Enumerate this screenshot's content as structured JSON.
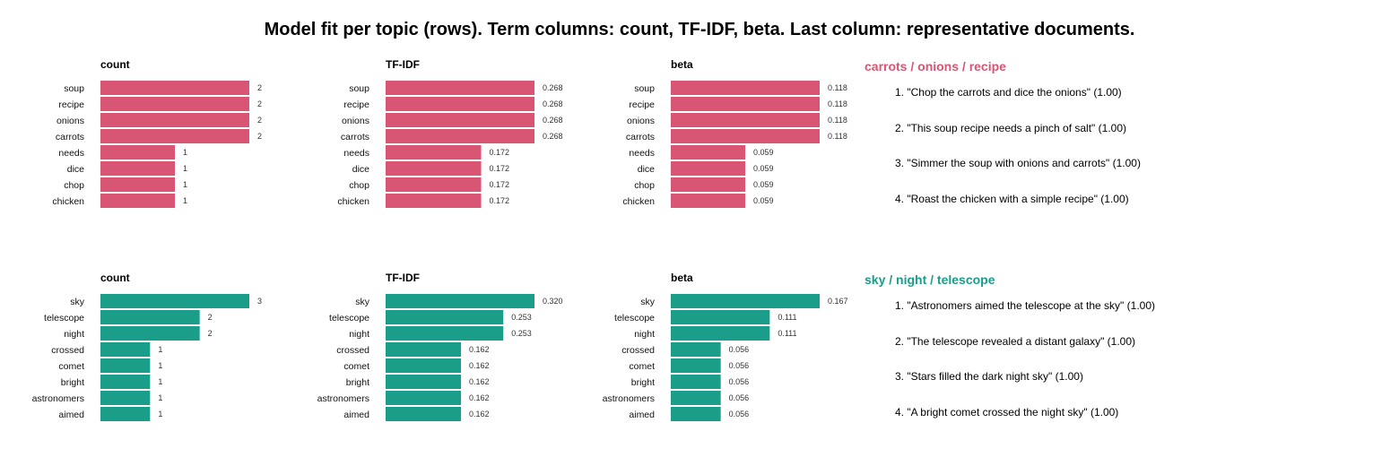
{
  "title": "Model fit per topic (rows). Term columns: count, TF-IDF, beta. Last column: representative documents.",
  "chart_data": [
    {
      "type": "bar",
      "orientation": "horizontal",
      "color": "#d95574",
      "topic_label": "carrots / onions / recipe",
      "terms": [
        "soup",
        "recipe",
        "onions",
        "carrots",
        "needs",
        "dice",
        "chop",
        "chicken"
      ],
      "panels": [
        {
          "metric": "count",
          "values": [
            2,
            2,
            2,
            2,
            1,
            1,
            1,
            1
          ],
          "labels": [
            "2",
            "2",
            "2",
            "2",
            "1",
            "1",
            "1",
            "1"
          ],
          "xlim": [
            0,
            2
          ]
        },
        {
          "metric": "TF-IDF",
          "values": [
            0.268,
            0.268,
            0.268,
            0.268,
            0.172,
            0.172,
            0.172,
            0.172
          ],
          "labels": [
            "0.268",
            "0.268",
            "0.268",
            "0.268",
            "0.172",
            "0.172",
            "0.172",
            "0.172"
          ],
          "xlim": [
            0,
            0.268
          ]
        },
        {
          "metric": "beta",
          "values": [
            0.118,
            0.118,
            0.118,
            0.118,
            0.059,
            0.059,
            0.059,
            0.059
          ],
          "labels": [
            "0.118",
            "0.118",
            "0.118",
            "0.118",
            "0.059",
            "0.059",
            "0.059",
            "0.059"
          ],
          "xlim": [
            0,
            0.118
          ]
        }
      ],
      "documents": [
        "1. \"Chop the carrots and dice the onions\"  (1.00)",
        "2. \"This soup recipe needs a pinch of salt\"  (1.00)",
        "3. \"Simmer the soup with onions and carrots\"  (1.00)",
        "4. \"Roast the chicken with a simple recipe\"  (1.00)"
      ]
    },
    {
      "type": "bar",
      "orientation": "horizontal",
      "color": "#1a9e8a",
      "topic_label": "sky / night / telescope",
      "terms": [
        "sky",
        "telescope",
        "night",
        "crossed",
        "comet",
        "bright",
        "astronomers",
        "aimed"
      ],
      "panels": [
        {
          "metric": "count",
          "values": [
            3,
            2,
            2,
            1,
            1,
            1,
            1,
            1
          ],
          "labels": [
            "3",
            "2",
            "2",
            "1",
            "1",
            "1",
            "1",
            "1"
          ],
          "xlim": [
            0,
            3
          ]
        },
        {
          "metric": "TF-IDF",
          "values": [
            0.32,
            0.253,
            0.253,
            0.162,
            0.162,
            0.162,
            0.162,
            0.162
          ],
          "labels": [
            "0.320",
            "0.253",
            "0.253",
            "0.162",
            "0.162",
            "0.162",
            "0.162",
            "0.162"
          ],
          "xlim": [
            0,
            0.32
          ]
        },
        {
          "metric": "beta",
          "values": [
            0.167,
            0.111,
            0.111,
            0.056,
            0.056,
            0.056,
            0.056,
            0.056
          ],
          "labels": [
            "0.167",
            "0.111",
            "0.111",
            "0.056",
            "0.056",
            "0.056",
            "0.056",
            "0.056"
          ],
          "xlim": [
            0,
            0.167
          ]
        }
      ],
      "documents": [
        "1. \"Astronomers aimed the telescope at the sky\"  (1.00)",
        "2. \"The telescope revealed a distant galaxy\"  (1.00)",
        "3. \"Stars filled the dark night sky\"  (1.00)",
        "4. \"A bright comet crossed the night sky\"  (1.00)"
      ]
    }
  ]
}
